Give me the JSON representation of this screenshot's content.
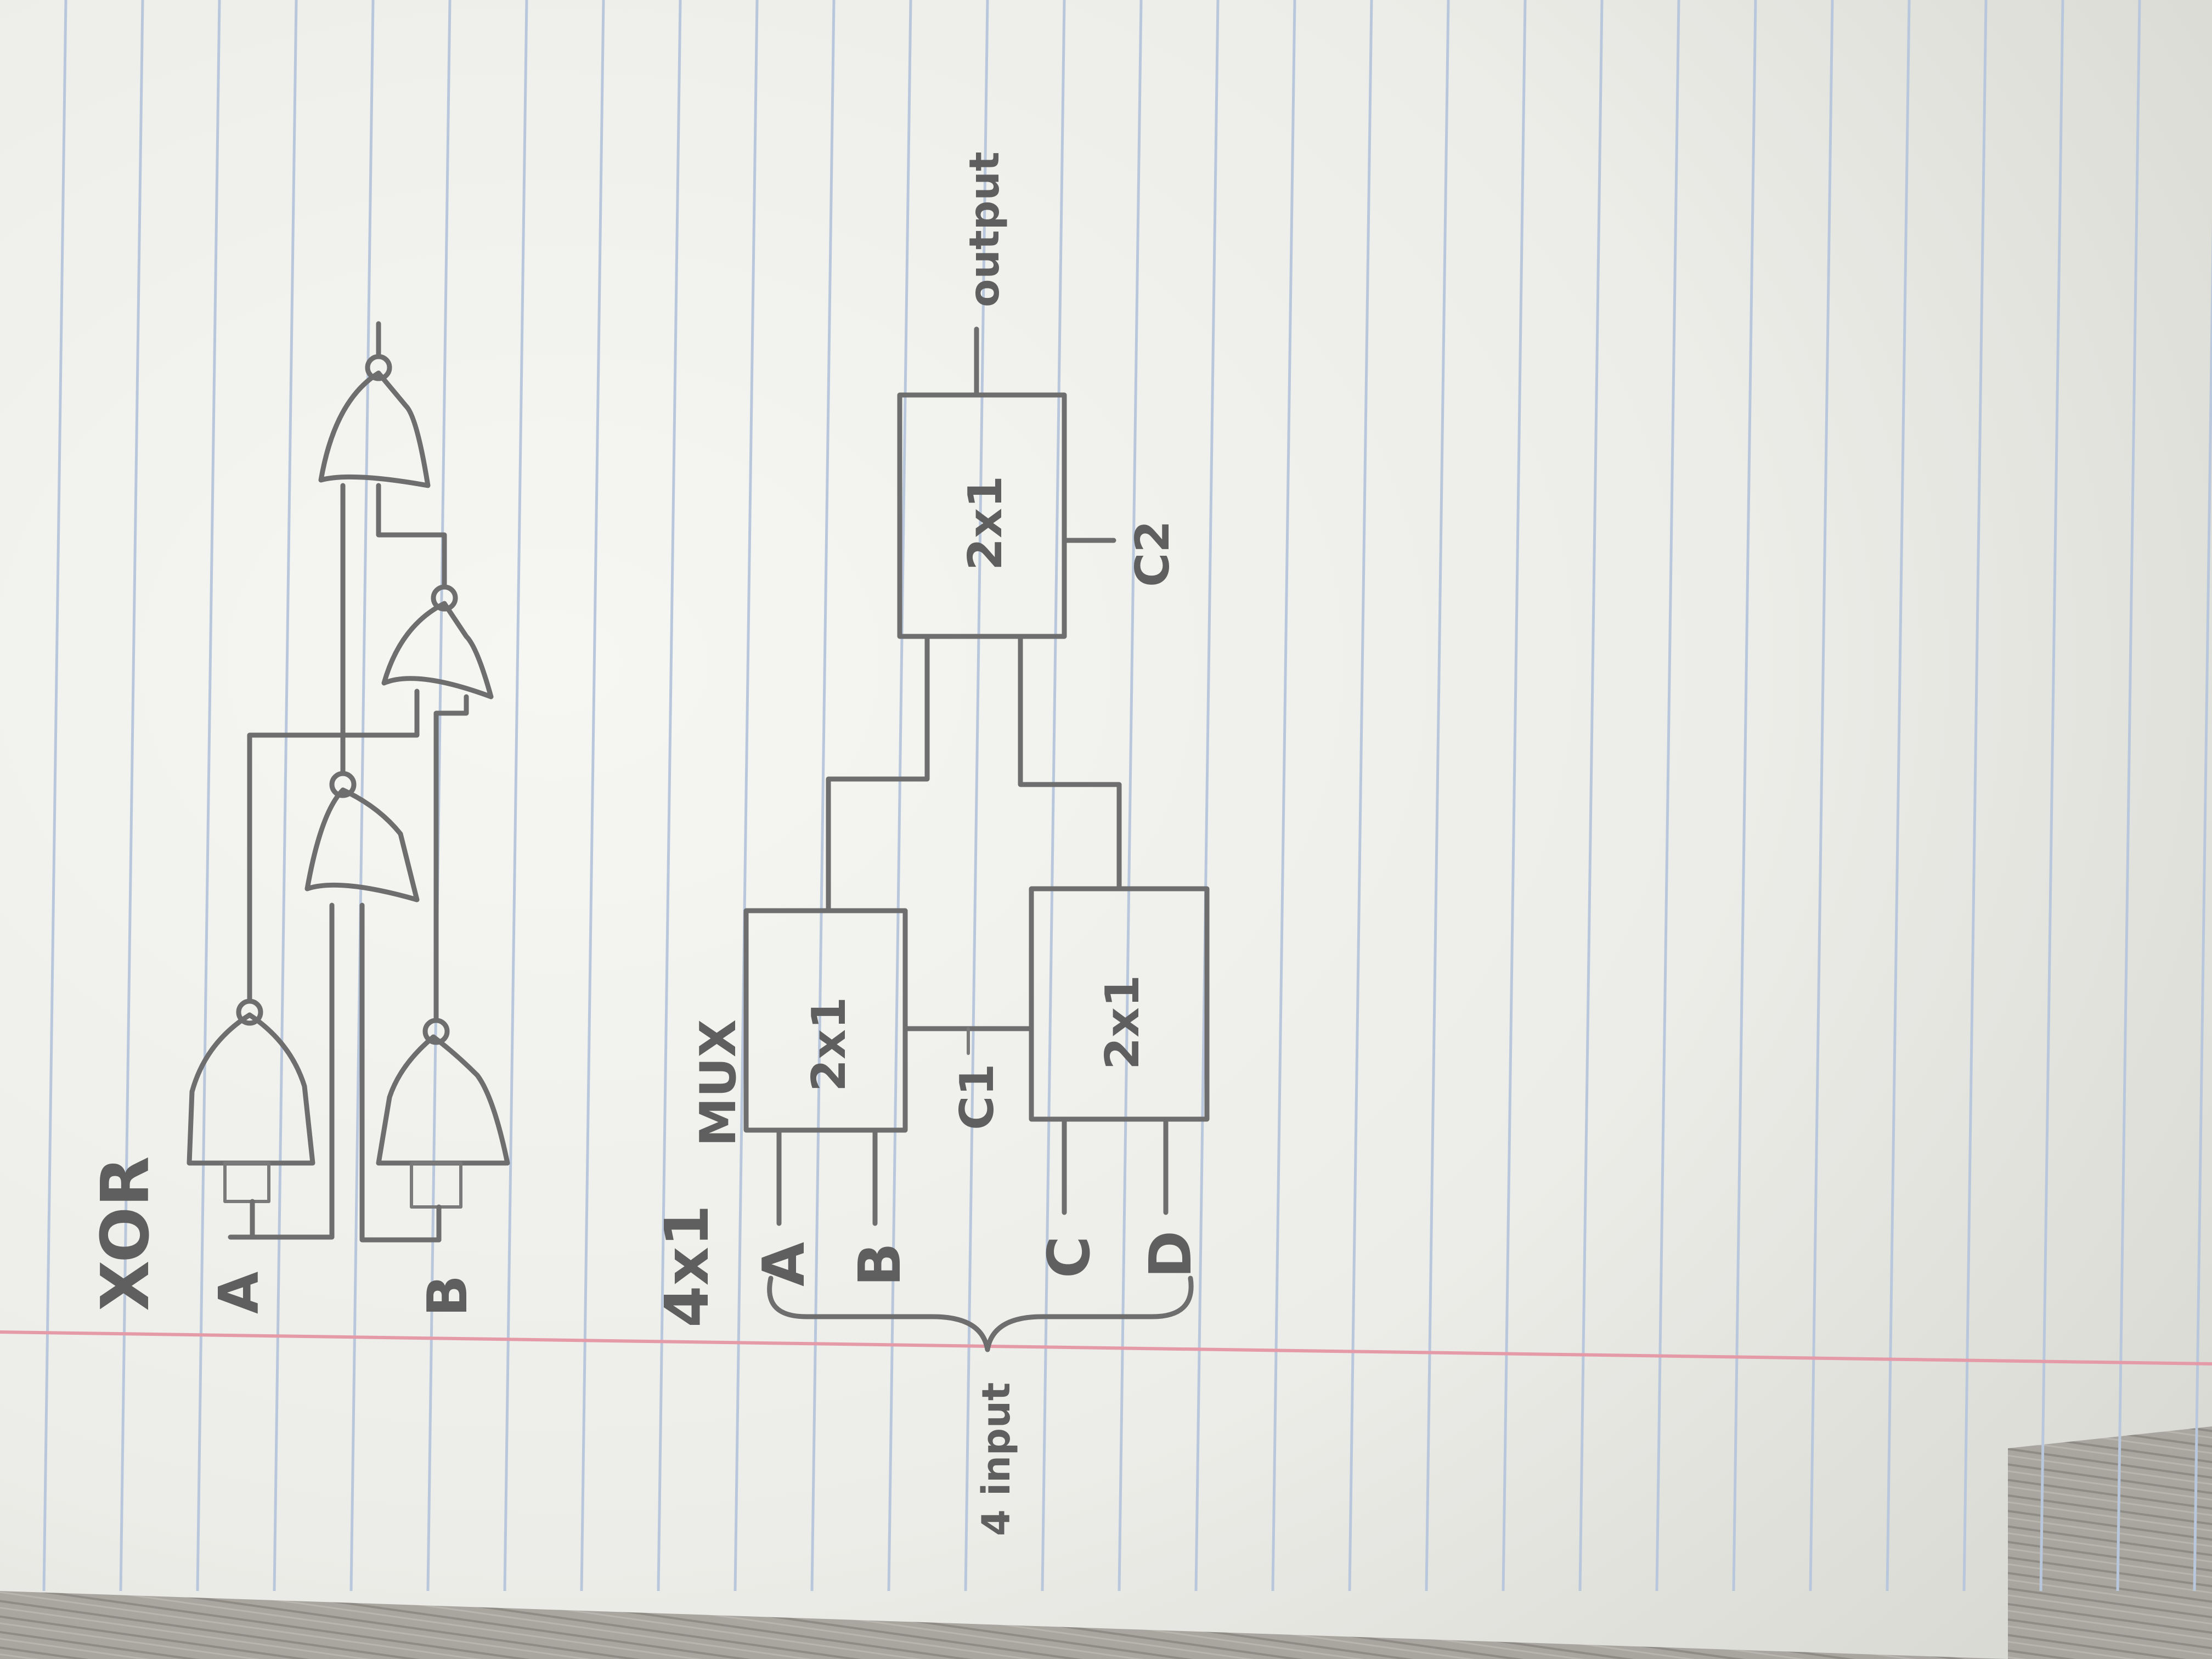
{
  "xor": {
    "title": "XOR",
    "input_a": "A",
    "input_b": "B"
  },
  "mux": {
    "title_size": "4x1",
    "title_word": "MUX",
    "block_label": "2x1",
    "inputs": [
      "A",
      "B",
      "C",
      "D"
    ],
    "input_brace_label": "4 input",
    "select_1": "C1",
    "select_2": "C2",
    "output_label": "output"
  },
  "colors": {
    "paper": "#f4f4f1",
    "rule_line": "#b9c7dc",
    "margin_line": "#e59aa8",
    "pencil": "#6e6e6e",
    "desk": "#a8a59e"
  }
}
